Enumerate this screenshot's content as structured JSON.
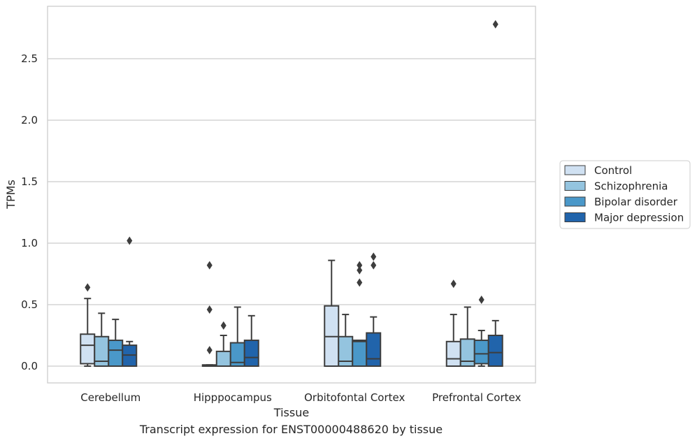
{
  "caption": "Transcript expression for ENST00000488620 by tissue",
  "chart_data": {
    "type": "box",
    "xlabel": "Tissue",
    "ylabel": "TPMs",
    "ylim": [
      -0.13,
      2.9
    ],
    "yticks": [
      0.0,
      0.5,
      1.0,
      1.5,
      2.0,
      2.5
    ],
    "ytick_labels": [
      "0.0",
      "0.5",
      "1.0",
      "1.5",
      "2.0",
      "2.5"
    ],
    "grid": "horizontal",
    "legend_position": "right",
    "categories": [
      "Cerebellum",
      "Hipppocampus",
      "Orbitofontal Cortex",
      "Prefrontal Cortex"
    ],
    "series": [
      {
        "name": "Control",
        "color": "#d0e1f2",
        "boxes": [
          {
            "whislo": 0.0,
            "q1": 0.02,
            "med": 0.17,
            "q3": 0.26,
            "whishi": 0.55,
            "fliers": [
              0.64
            ]
          },
          {
            "whislo": 0.0,
            "q1": 0.0,
            "med": 0.0,
            "q3": 0.01,
            "whishi": 0.01,
            "fliers": [
              0.13,
              0.46,
              0.82
            ]
          },
          {
            "whislo": 0.0,
            "q1": 0.0,
            "med": 0.24,
            "q3": 0.49,
            "whishi": 0.86,
            "fliers": []
          },
          {
            "whislo": 0.0,
            "q1": 0.0,
            "med": 0.06,
            "q3": 0.2,
            "whishi": 0.42,
            "fliers": [
              0.67
            ]
          }
        ]
      },
      {
        "name": "Schizophrenia",
        "color": "#94c4df",
        "boxes": [
          {
            "whislo": 0.0,
            "q1": 0.0,
            "med": 0.04,
            "q3": 0.24,
            "whishi": 0.43,
            "fliers": []
          },
          {
            "whislo": 0.0,
            "q1": 0.0,
            "med": 0.0,
            "q3": 0.12,
            "whishi": 0.25,
            "fliers": [
              0.33
            ]
          },
          {
            "whislo": 0.0,
            "q1": 0.0,
            "med": 0.04,
            "q3": 0.24,
            "whishi": 0.42,
            "fliers": []
          },
          {
            "whislo": 0.0,
            "q1": 0.0,
            "med": 0.04,
            "q3": 0.22,
            "whishi": 0.48,
            "fliers": []
          }
        ]
      },
      {
        "name": "Bipolar disorder",
        "color": "#4a98c9",
        "boxes": [
          {
            "whislo": 0.0,
            "q1": 0.0,
            "med": 0.13,
            "q3": 0.21,
            "whishi": 0.38,
            "fliers": []
          },
          {
            "whislo": 0.0,
            "q1": 0.0,
            "med": 0.03,
            "q3": 0.19,
            "whishi": 0.48,
            "fliers": []
          },
          {
            "whislo": 0.0,
            "q1": 0.0,
            "med": 0.2,
            "q3": 0.21,
            "whishi": 0.21,
            "fliers": [
              0.68,
              0.78,
              0.82
            ]
          },
          {
            "whislo": 0.0,
            "q1": 0.02,
            "med": 0.1,
            "q3": 0.21,
            "whishi": 0.29,
            "fliers": [
              0.54
            ]
          }
        ]
      },
      {
        "name": "Major depression",
        "color": "#2164ab",
        "boxes": [
          {
            "whislo": 0.0,
            "q1": 0.0,
            "med": 0.09,
            "q3": 0.17,
            "whishi": 0.2,
            "fliers": [
              1.02
            ]
          },
          {
            "whislo": 0.0,
            "q1": 0.0,
            "med": 0.07,
            "q3": 0.21,
            "whishi": 0.41,
            "fliers": []
          },
          {
            "whislo": 0.0,
            "q1": 0.0,
            "med": 0.06,
            "q3": 0.27,
            "whishi": 0.4,
            "fliers": [
              0.82,
              0.89
            ]
          },
          {
            "whislo": 0.0,
            "q1": 0.0,
            "med": 0.11,
            "q3": 0.25,
            "whishi": 0.37,
            "fliers": [
              2.78
            ]
          }
        ]
      }
    ]
  }
}
